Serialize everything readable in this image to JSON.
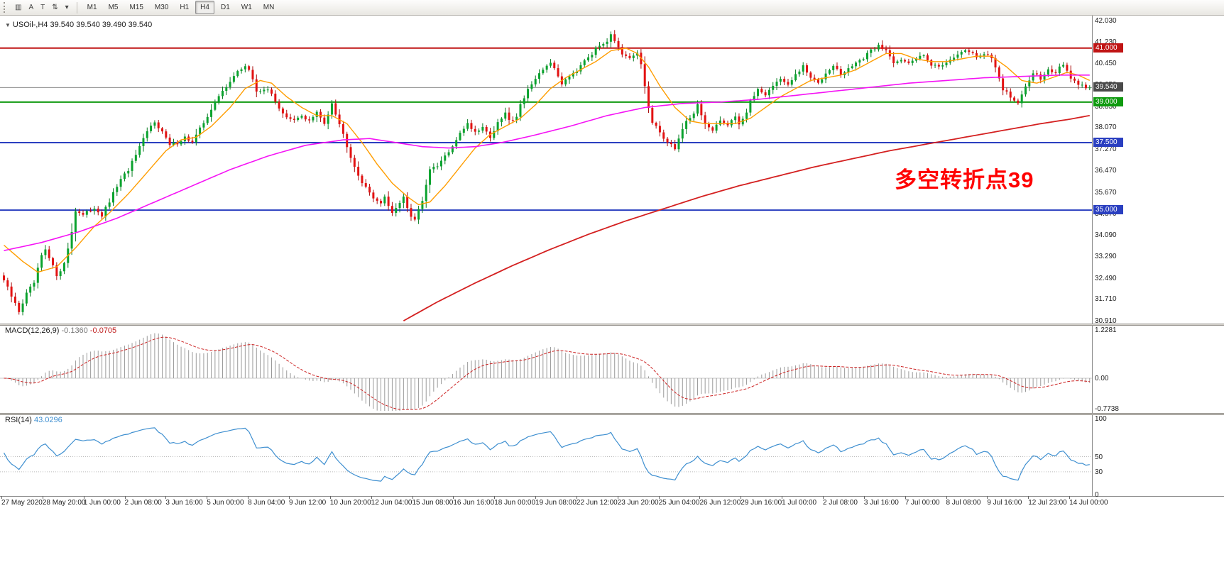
{
  "toolbar": {
    "buttons": [
      {
        "name": "chart-window-icon",
        "glyph": "▥"
      },
      {
        "name": "cursor-mode-button",
        "glyph": "A"
      },
      {
        "name": "crosshair-button",
        "glyph": "T"
      },
      {
        "name": "cycle-symbols-button",
        "glyph": "⇅"
      },
      {
        "name": "cycle-dropdown-icon",
        "glyph": "▾"
      }
    ],
    "timeframes": [
      "M1",
      "M5",
      "M15",
      "M30",
      "H1",
      "H4",
      "D1",
      "W1",
      "MN"
    ],
    "active_timeframe": "H4"
  },
  "main_chart": {
    "marker": "▼",
    "symbol_period": "USOil-,H4",
    "ohlc": "39.540 39.540 39.490 39.540",
    "annotation": {
      "text": "多空转折点39",
      "color": "#FF0000"
    },
    "axis_ticks": [
      "42.030",
      "41.230",
      "40.450",
      "39.650",
      "38.850",
      "38.070",
      "37.270",
      "36.470",
      "35.670",
      "34.870",
      "34.090",
      "33.290",
      "32.490",
      "31.710",
      "30.910"
    ],
    "badges": [
      {
        "value": "41.000",
        "color": "#c01414"
      },
      {
        "value": "39.540",
        "color": "#4a4a4a"
      },
      {
        "value": "39.000",
        "color": "#0f9a0f"
      },
      {
        "value": "37.500",
        "color": "#2a3fc0"
      },
      {
        "value": "35.000",
        "color": "#2a3fc0"
      }
    ]
  },
  "macd_panel": {
    "label": "MACD(12,26,9)",
    "value_main": "-0.1360",
    "value_signal": "-0.0705",
    "axis": [
      "1.2281",
      "0.00",
      "-0.7738"
    ]
  },
  "rsi_panel": {
    "label": "RSI(14)",
    "value": "43.0296",
    "axis": [
      "100",
      "50",
      "30",
      "0"
    ]
  },
  "time_axis": {
    "labels": [
      "27 May 2020",
      "28 May 20:00",
      "1 Jun 00:00",
      "2 Jun 08:00",
      "3 Jun 16:00",
      "5 Jun 00:00",
      "8 Jun 04:00",
      "9 Jun 12:00",
      "10 Jun 20:00",
      "12 Jun 04:00",
      "15 Jun 08:00",
      "16 Jun 16:00",
      "18 Jun 00:00",
      "19 Jun 08:00",
      "22 Jun 12:00",
      "23 Jun 20:00",
      "25 Jun 04:00",
      "26 Jun 12:00",
      "29 Jun 16:00",
      "1 Jul 00:00",
      "2 Jul 08:00",
      "3 Jul 16:00",
      "7 Jul 00:00",
      "8 Jul 08:00",
      "9 Jul 16:00",
      "12 Jul 23:00",
      "14 Jul 00:00"
    ]
  },
  "chart_data": {
    "type": "candlestick",
    "instrument": "USOil",
    "timeframe": "H4",
    "last_price": 39.54,
    "bar_count": 289,
    "price_axis_range": [
      30.85,
      42.15
    ],
    "horizontal_levels": [
      {
        "price": 41.0,
        "color": "#c01414",
        "role": "resistance"
      },
      {
        "price": 39.0,
        "color": "#0f9a0f",
        "role": "support"
      },
      {
        "price": 37.5,
        "color": "#2a3fc0",
        "role": "support"
      },
      {
        "price": 35.0,
        "color": "#2a3fc0",
        "role": "support"
      }
    ],
    "bid_line": {
      "price": 39.54,
      "color": "#8c8c8c"
    },
    "colors": {
      "candle_up": "#0aa32e",
      "candle_up_wick": "#067a20",
      "candle_down": "#e31212",
      "candle_down_wick": "#a90c0c",
      "ma_fast": "#ff9d00",
      "ma_mid": "#f513f5",
      "ma_slow": "#d42020",
      "macd_hist": "#9a9a9a",
      "macd_signal": "#cc2222",
      "rsi_line": "#3e8fd0"
    },
    "close_anchors": [
      [
        0,
        32.4
      ],
      [
        2,
        31.8
      ],
      [
        4,
        31.25
      ],
      [
        6,
        31.9
      ],
      [
        8,
        32.3
      ],
      [
        10,
        33.3
      ],
      [
        11,
        33.5
      ],
      [
        13,
        32.9
      ],
      [
        14,
        32.6
      ],
      [
        16,
        33.0
      ],
      [
        18,
        34.2
      ],
      [
        19,
        35.0
      ],
      [
        21,
        34.8
      ],
      [
        24,
        35.1
      ],
      [
        26,
        34.8
      ],
      [
        28,
        35.3
      ],
      [
        30,
        35.9
      ],
      [
        33,
        36.5
      ],
      [
        36,
        37.3
      ],
      [
        38,
        37.9
      ],
      [
        40,
        38.3
      ],
      [
        42,
        37.9
      ],
      [
        44,
        37.4
      ],
      [
        46,
        37.5
      ],
      [
        48,
        37.7
      ],
      [
        50,
        37.5
      ],
      [
        52,
        38.0
      ],
      [
        54,
        38.5
      ],
      [
        57,
        39.2
      ],
      [
        60,
        39.8
      ],
      [
        62,
        40.1
      ],
      [
        64,
        40.35
      ],
      [
        65,
        40.2
      ],
      [
        67,
        39.4
      ],
      [
        69,
        39.5
      ],
      [
        71,
        39.3
      ],
      [
        73,
        38.8
      ],
      [
        75,
        38.4
      ],
      [
        77,
        38.3
      ],
      [
        79,
        38.5
      ],
      [
        81,
        38.3
      ],
      [
        83,
        38.6
      ],
      [
        85,
        38.2
      ],
      [
        86,
        38.6
      ],
      [
        87,
        39.0
      ],
      [
        88,
        38.6
      ],
      [
        90,
        37.8
      ],
      [
        92,
        37.0
      ],
      [
        94,
        36.3
      ],
      [
        96,
        35.8
      ],
      [
        98,
        35.5
      ],
      [
        100,
        35.2
      ],
      [
        101,
        35.5
      ],
      [
        103,
        34.9
      ],
      [
        105,
        35.3
      ],
      [
        106,
        35.5
      ],
      [
        108,
        34.7
      ],
      [
        109,
        34.65
      ],
      [
        111,
        35.3
      ],
      [
        112,
        36.0
      ],
      [
        113,
        36.5
      ],
      [
        115,
        36.6
      ],
      [
        117,
        37.0
      ],
      [
        119,
        37.3
      ],
      [
        121,
        37.9
      ],
      [
        123,
        38.2
      ],
      [
        125,
        37.9
      ],
      [
        127,
        38.1
      ],
      [
        129,
        37.7
      ],
      [
        131,
        38.2
      ],
      [
        133,
        38.6
      ],
      [
        134,
        38.3
      ],
      [
        136,
        38.5
      ],
      [
        137,
        38.9
      ],
      [
        139,
        39.5
      ],
      [
        141,
        39.8
      ],
      [
        143,
        40.2
      ],
      [
        145,
        40.5
      ],
      [
        146,
        40.2
      ],
      [
        148,
        39.7
      ],
      [
        150,
        40.0
      ],
      [
        152,
        40.2
      ],
      [
        154,
        40.6
      ],
      [
        156,
        40.8
      ],
      [
        158,
        41.1
      ],
      [
        160,
        41.3
      ],
      [
        161,
        41.55
      ],
      [
        162,
        41.3
      ],
      [
        164,
        40.7
      ],
      [
        166,
        40.6
      ],
      [
        168,
        40.8
      ],
      [
        169,
        40.4
      ],
      [
        171,
        38.8
      ],
      [
        172,
        38.2
      ],
      [
        174,
        37.9
      ],
      [
        176,
        37.5
      ],
      [
        178,
        37.3
      ],
      [
        180,
        38.0
      ],
      [
        181,
        38.3
      ],
      [
        183,
        38.6
      ],
      [
        184,
        38.9
      ],
      [
        186,
        38.2
      ],
      [
        188,
        37.9
      ],
      [
        190,
        38.3
      ],
      [
        192,
        38.2
      ],
      [
        194,
        38.5
      ],
      [
        195,
        38.2
      ],
      [
        197,
        38.6
      ],
      [
        198,
        39.0
      ],
      [
        200,
        39.5
      ],
      [
        202,
        39.3
      ],
      [
        204,
        39.6
      ],
      [
        206,
        39.9
      ],
      [
        208,
        39.6
      ],
      [
        210,
        40.0
      ],
      [
        212,
        40.3
      ],
      [
        214,
        39.9
      ],
      [
        216,
        39.7
      ],
      [
        218,
        40.1
      ],
      [
        220,
        40.4
      ],
      [
        222,
        40.0
      ],
      [
        224,
        40.2
      ],
      [
        226,
        40.5
      ],
      [
        228,
        40.6
      ],
      [
        230,
        40.9
      ],
      [
        232,
        41.1
      ],
      [
        234,
        40.9
      ],
      [
        236,
        40.5
      ],
      [
        238,
        40.6
      ],
      [
        240,
        40.4
      ],
      [
        242,
        40.6
      ],
      [
        244,
        40.8
      ],
      [
        246,
        40.4
      ],
      [
        248,
        40.3
      ],
      [
        250,
        40.5
      ],
      [
        252,
        40.7
      ],
      [
        254,
        40.8
      ],
      [
        256,
        40.9
      ],
      [
        258,
        40.7
      ],
      [
        260,
        40.8
      ],
      [
        262,
        40.6
      ],
      [
        263,
        40.3
      ],
      [
        265,
        39.5
      ],
      [
        267,
        39.2
      ],
      [
        269,
        38.9
      ],
      [
        271,
        39.6
      ],
      [
        273,
        40.1
      ],
      [
        275,
        39.9
      ],
      [
        277,
        40.2
      ],
      [
        279,
        40.1
      ],
      [
        281,
        40.4
      ],
      [
        283,
        39.9
      ],
      [
        285,
        39.6
      ],
      [
        288,
        39.54
      ]
    ],
    "ma_fast_anchors": [
      [
        0,
        33.7
      ],
      [
        5,
        33.1
      ],
      [
        9,
        32.7
      ],
      [
        14,
        32.9
      ],
      [
        19,
        33.6
      ],
      [
        24,
        34.4
      ],
      [
        28,
        34.9
      ],
      [
        33,
        35.6
      ],
      [
        38,
        36.4
      ],
      [
        43,
        37.2
      ],
      [
        47,
        37.6
      ],
      [
        51,
        37.7
      ],
      [
        55,
        38.1
      ],
      [
        60,
        38.8
      ],
      [
        64,
        39.5
      ],
      [
        68,
        39.8
      ],
      [
        71,
        39.7
      ],
      [
        75,
        39.2
      ],
      [
        79,
        38.8
      ],
      [
        83,
        38.5
      ],
      [
        87,
        38.5
      ],
      [
        91,
        38.2
      ],
      [
        95,
        37.5
      ],
      [
        99,
        36.7
      ],
      [
        103,
        36.0
      ],
      [
        107,
        35.5
      ],
      [
        110,
        35.2
      ],
      [
        113,
        35.3
      ],
      [
        117,
        35.9
      ],
      [
        121,
        36.6
      ],
      [
        125,
        37.3
      ],
      [
        129,
        37.8
      ],
      [
        133,
        38.1
      ],
      [
        137,
        38.4
      ],
      [
        141,
        38.9
      ],
      [
        145,
        39.5
      ],
      [
        149,
        39.9
      ],
      [
        153,
        40.2
      ],
      [
        157,
        40.5
      ],
      [
        161,
        40.9
      ],
      [
        165,
        41.0
      ],
      [
        168,
        40.8
      ],
      [
        171,
        40.3
      ],
      [
        174,
        39.6
      ],
      [
        178,
        38.8
      ],
      [
        182,
        38.3
      ],
      [
        186,
        38.2
      ],
      [
        190,
        38.2
      ],
      [
        194,
        38.2
      ],
      [
        198,
        38.4
      ],
      [
        202,
        38.8
      ],
      [
        206,
        39.2
      ],
      [
        210,
        39.5
      ],
      [
        214,
        39.8
      ],
      [
        218,
        39.9
      ],
      [
        222,
        40.0
      ],
      [
        226,
        40.2
      ],
      [
        230,
        40.5
      ],
      [
        234,
        40.8
      ],
      [
        238,
        40.8
      ],
      [
        242,
        40.6
      ],
      [
        246,
        40.5
      ],
      [
        250,
        40.5
      ],
      [
        254,
        40.6
      ],
      [
        258,
        40.7
      ],
      [
        262,
        40.7
      ],
      [
        266,
        40.3
      ],
      [
        270,
        39.8
      ],
      [
        274,
        39.7
      ],
      [
        278,
        39.9
      ],
      [
        282,
        40.1
      ],
      [
        285,
        40.0
      ],
      [
        288,
        39.8
      ]
    ],
    "ma_mid_anchors": [
      [
        0,
        33.5
      ],
      [
        10,
        33.8
      ],
      [
        20,
        34.2
      ],
      [
        30,
        34.7
      ],
      [
        40,
        35.3
      ],
      [
        50,
        35.9
      ],
      [
        60,
        36.5
      ],
      [
        70,
        37.0
      ],
      [
        80,
        37.4
      ],
      [
        90,
        37.6
      ],
      [
        97,
        37.65
      ],
      [
        104,
        37.5
      ],
      [
        111,
        37.35
      ],
      [
        118,
        37.3
      ],
      [
        125,
        37.35
      ],
      [
        132,
        37.5
      ],
      [
        140,
        37.75
      ],
      [
        150,
        38.1
      ],
      [
        160,
        38.5
      ],
      [
        170,
        38.8
      ],
      [
        180,
        38.95
      ],
      [
        190,
        39.0
      ],
      [
        200,
        39.1
      ],
      [
        210,
        39.25
      ],
      [
        220,
        39.4
      ],
      [
        230,
        39.55
      ],
      [
        240,
        39.7
      ],
      [
        250,
        39.8
      ],
      [
        260,
        39.9
      ],
      [
        270,
        39.95
      ],
      [
        280,
        40.0
      ],
      [
        288,
        40.0
      ]
    ],
    "ma_slow_anchors": [
      [
        106,
        30.9
      ],
      [
        115,
        31.6
      ],
      [
        125,
        32.3
      ],
      [
        135,
        32.95
      ],
      [
        145,
        33.55
      ],
      [
        155,
        34.1
      ],
      [
        165,
        34.6
      ],
      [
        175,
        35.05
      ],
      [
        185,
        35.5
      ],
      [
        195,
        35.9
      ],
      [
        205,
        36.25
      ],
      [
        215,
        36.6
      ],
      [
        225,
        36.9
      ],
      [
        235,
        37.2
      ],
      [
        245,
        37.45
      ],
      [
        255,
        37.7
      ],
      [
        265,
        37.95
      ],
      [
        275,
        38.2
      ],
      [
        282,
        38.35
      ],
      [
        288,
        38.5
      ]
    ],
    "indicators": [
      {
        "name": "MACD",
        "params": [
          12,
          26,
          9
        ],
        "value_main": -0.136,
        "value_signal": -0.0705,
        "axis_max": 1.2281,
        "axis_min": -0.7738
      },
      {
        "name": "RSI",
        "params": [
          14
        ],
        "value": 43.0296,
        "levels": [
          50,
          30
        ],
        "axis": [
          100,
          50,
          30,
          0
        ]
      }
    ]
  }
}
